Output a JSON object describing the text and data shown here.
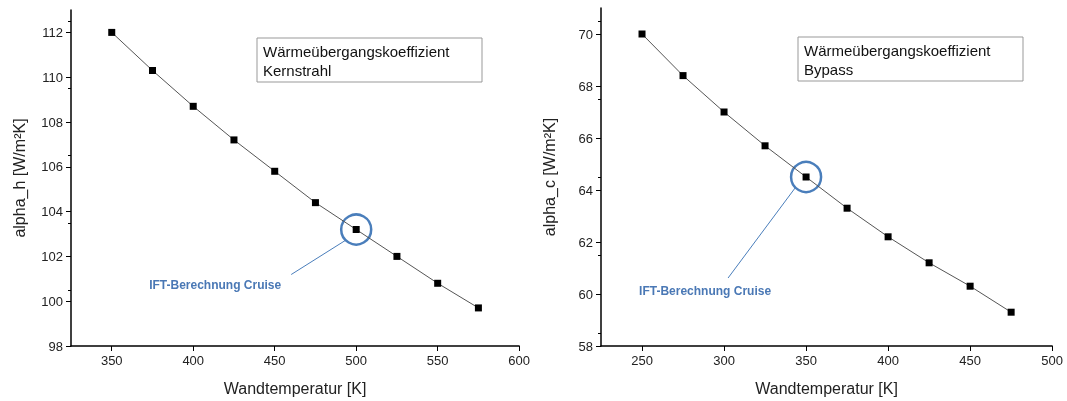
{
  "chart_data": [
    {
      "type": "line",
      "xlabel": "Wandtemperatur [K]",
      "ylabel": "alpha_h [W/m²K]",
      "x": [
        350,
        375,
        400,
        425,
        450,
        475,
        500,
        525,
        550,
        575
      ],
      "series": [
        {
          "color": "#000000",
          "values": [
            112.0,
            110.3,
            108.7,
            107.2,
            105.8,
            104.4,
            103.2,
            102.0,
            100.8,
            99.7
          ]
        }
      ],
      "xlim": [
        325,
        600
      ],
      "xticks": [
        350,
        400,
        450,
        500,
        550,
        600
      ],
      "ylim": [
        98,
        113
      ],
      "yticks": [
        98,
        100,
        102,
        104,
        106,
        108,
        110,
        112
      ],
      "marker": "square",
      "line_style": "solid",
      "grid": false,
      "annotations": [
        "Wärmeübergangskoeffizient\nKernstrahl",
        "IFT-Berechnung Cruise"
      ]
    },
    {
      "type": "line",
      "xlabel": "Wandtemperatur [K]",
      "ylabel": "alpha_c [W/m²K]",
      "x": [
        250,
        275,
        300,
        325,
        350,
        375,
        400,
        425,
        450,
        475
      ],
      "series": [
        {
          "color": "#000000",
          "values": [
            70.0,
            68.4,
            67.0,
            65.7,
            64.5,
            63.3,
            62.2,
            61.2,
            60.3,
            59.3
          ]
        }
      ],
      "xlim": [
        225,
        500
      ],
      "xticks": [
        250,
        300,
        350,
        400,
        450,
        500
      ],
      "ylim": [
        58,
        71
      ],
      "yticks": [
        58,
        60,
        62,
        64,
        66,
        68,
        70
      ],
      "marker": "square",
      "line_style": "solid",
      "grid": false,
      "annotations": [
        "Wärmeübergangskoeffizient\nBypass",
        "IFT-Berechnung Cruise"
      ]
    }
  ]
}
